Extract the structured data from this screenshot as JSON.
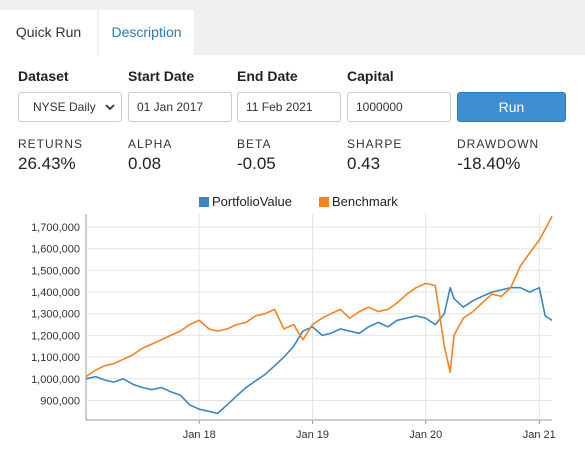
{
  "tabs": [
    {
      "label": "Quick Run",
      "active": true
    },
    {
      "label": "Description",
      "active": false
    }
  ],
  "form": {
    "dataset_label": "Dataset",
    "dataset_value": "NYSE Daily",
    "start_label": "Start Date",
    "start_value": "01 Jan 2017",
    "end_label": "End Date",
    "end_value": "11 Feb 2021",
    "capital_label": "Capital",
    "capital_value": "1000000",
    "run_label": "Run"
  },
  "metrics": [
    {
      "label": "RETURNS",
      "value": "26.43%"
    },
    {
      "label": "ALPHA",
      "value": "0.08"
    },
    {
      "label": "BETA",
      "value": "-0.05"
    },
    {
      "label": "SHARPE",
      "value": "0.43"
    },
    {
      "label": "DRAWDOWN",
      "value": "-18.40%"
    }
  ],
  "colors": {
    "portfolio": "#3a87bf",
    "benchmark": "#f5821f",
    "accent": "#3d8fd1"
  },
  "chart_data": {
    "type": "line",
    "title": "",
    "xlabel": "",
    "ylabel": "",
    "legend_position": "top-center",
    "grid": true,
    "x_range": [
      "2017-01-01",
      "2021-02-11"
    ],
    "ylim": [
      810000,
      1760000
    ],
    "yticks": [
      900000,
      1000000,
      1100000,
      1200000,
      1300000,
      1400000,
      1500000,
      1600000,
      1700000
    ],
    "ytick_labels": [
      "900,000",
      "1,000,000",
      "1,100,000",
      "1,200,000",
      "1,300,000",
      "1,400,000",
      "1,500,000",
      "1,600,000",
      "1,700,000"
    ],
    "xticks": [
      "2018-01-01",
      "2019-01-01",
      "2020-01-01",
      "2021-01-01"
    ],
    "xtick_labels": [
      "Jan 18",
      "Jan 19",
      "Jan 20",
      "Jan 21"
    ],
    "series": [
      {
        "name": "PortfolioValue",
        "x": [
          "2017-01-01",
          "2017-02-01",
          "2017-03-01",
          "2017-04-01",
          "2017-05-01",
          "2017-06-01",
          "2017-07-01",
          "2017-08-01",
          "2017-09-01",
          "2017-10-01",
          "2017-11-01",
          "2017-12-01",
          "2018-01-01",
          "2018-02-01",
          "2018-03-01",
          "2018-04-01",
          "2018-05-01",
          "2018-06-01",
          "2018-07-01",
          "2018-08-01",
          "2018-09-01",
          "2018-10-01",
          "2018-11-01",
          "2018-12-01",
          "2019-01-01",
          "2019-02-01",
          "2019-03-01",
          "2019-04-01",
          "2019-05-01",
          "2019-06-01",
          "2019-07-01",
          "2019-08-01",
          "2019-09-01",
          "2019-10-01",
          "2019-11-01",
          "2019-12-01",
          "2020-01-01",
          "2020-02-01",
          "2020-03-01",
          "2020-03-20",
          "2020-04-01",
          "2020-05-01",
          "2020-06-01",
          "2020-07-01",
          "2020-08-01",
          "2020-09-01",
          "2020-10-01",
          "2020-11-01",
          "2020-12-01",
          "2021-01-01",
          "2021-01-20",
          "2021-02-11"
        ],
        "values": [
          1000000,
          1010000,
          995000,
          985000,
          1000000,
          975000,
          960000,
          950000,
          960000,
          940000,
          925000,
          880000,
          860000,
          850000,
          840000,
          880000,
          920000,
          960000,
          990000,
          1020000,
          1060000,
          1100000,
          1150000,
          1220000,
          1240000,
          1200000,
          1210000,
          1230000,
          1220000,
          1210000,
          1240000,
          1260000,
          1240000,
          1270000,
          1280000,
          1290000,
          1280000,
          1250000,
          1300000,
          1420000,
          1370000,
          1330000,
          1360000,
          1380000,
          1400000,
          1410000,
          1420000,
          1420000,
          1400000,
          1420000,
          1290000,
          1270000
        ]
      },
      {
        "name": "Benchmark",
        "x": [
          "2017-01-01",
          "2017-02-01",
          "2017-03-01",
          "2017-04-01",
          "2017-05-01",
          "2017-06-01",
          "2017-07-01",
          "2017-08-01",
          "2017-09-01",
          "2017-10-01",
          "2017-11-01",
          "2017-12-01",
          "2018-01-01",
          "2018-02-01",
          "2018-03-01",
          "2018-04-01",
          "2018-05-01",
          "2018-06-01",
          "2018-07-01",
          "2018-08-01",
          "2018-09-01",
          "2018-10-01",
          "2018-11-01",
          "2018-12-01",
          "2019-01-01",
          "2019-02-01",
          "2019-03-01",
          "2019-04-01",
          "2019-05-01",
          "2019-06-01",
          "2019-07-01",
          "2019-08-01",
          "2019-09-01",
          "2019-10-01",
          "2019-11-01",
          "2019-12-01",
          "2020-01-01",
          "2020-02-01",
          "2020-03-01",
          "2020-03-20",
          "2020-04-01",
          "2020-05-01",
          "2020-06-01",
          "2020-07-01",
          "2020-08-01",
          "2020-09-01",
          "2020-10-01",
          "2020-11-01",
          "2020-12-01",
          "2021-01-01",
          "2021-01-20",
          "2021-02-11"
        ],
        "values": [
          1010000,
          1040000,
          1060000,
          1070000,
          1090000,
          1110000,
          1140000,
          1160000,
          1180000,
          1200000,
          1220000,
          1250000,
          1270000,
          1230000,
          1220000,
          1230000,
          1250000,
          1260000,
          1290000,
          1300000,
          1320000,
          1230000,
          1250000,
          1180000,
          1250000,
          1280000,
          1300000,
          1320000,
          1280000,
          1310000,
          1330000,
          1310000,
          1320000,
          1350000,
          1390000,
          1420000,
          1440000,
          1430000,
          1150000,
          1030000,
          1200000,
          1280000,
          1310000,
          1350000,
          1390000,
          1380000,
          1420000,
          1520000,
          1580000,
          1640000,
          1690000,
          1750000
        ]
      }
    ]
  }
}
